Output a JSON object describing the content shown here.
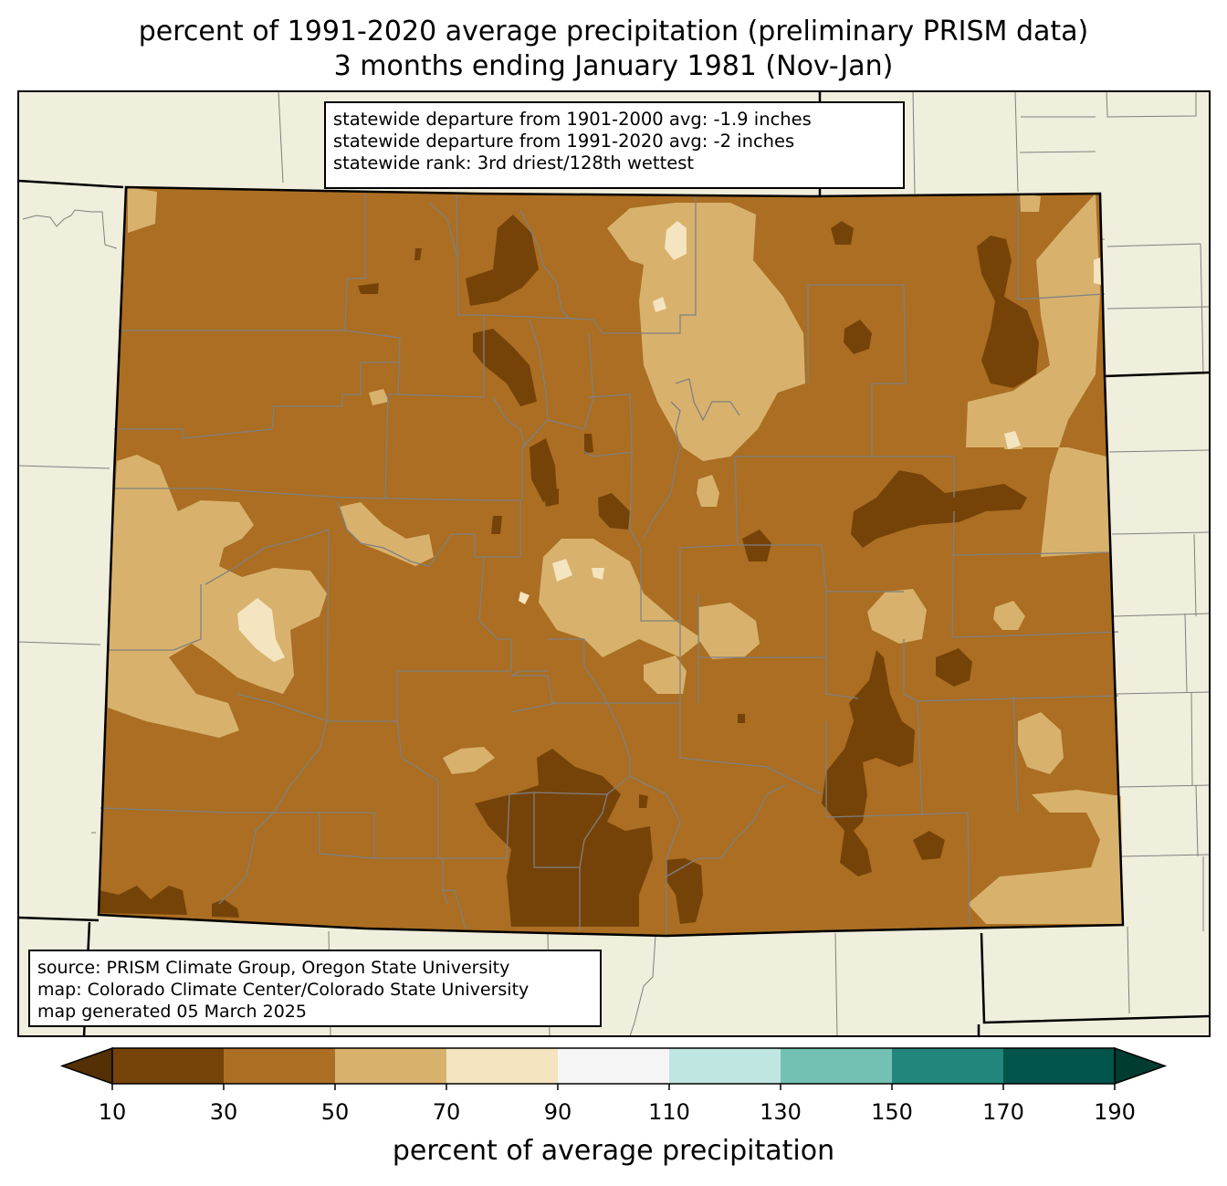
{
  "title_line1": "percent of 1991-2020 average precipitation (preliminary PRISM data)",
  "title_line2": "3 months ending January 1981 (Nov-Jan)",
  "stats": {
    "line1": "statewide departure from 1901-2000 avg: -1.9 inches",
    "line2": "statewide departure from 1991-2020 avg: -2 inches",
    "line3": "statewide rank: 3rd driest/128th wettest"
  },
  "source": {
    "line1": "source: PRISM Climate Group, Oregon State University",
    "line2": "map: Colorado Climate Center/Colorado State University",
    "line3": "map generated 05 March 2025"
  },
  "colorbar": {
    "label": "percent of average precipitation",
    "ticks": [
      "10",
      "30",
      "50",
      "70",
      "90",
      "110",
      "130",
      "150",
      "170",
      "190"
    ],
    "colors": [
      "#754308",
      "#ab6e22",
      "#d8b26d",
      "#f4e4bf",
      "#f5f5f5",
      "#bfe6e0",
      "#72c1b3",
      "#21867c",
      "#01554a"
    ],
    "under_color": "#553004",
    "over_color": "#003c30"
  },
  "colors": {
    "background_land": "#f0eedc",
    "state_fill": "#ab6e22",
    "county_line": "#808080",
    "state_line": "#000000"
  }
}
